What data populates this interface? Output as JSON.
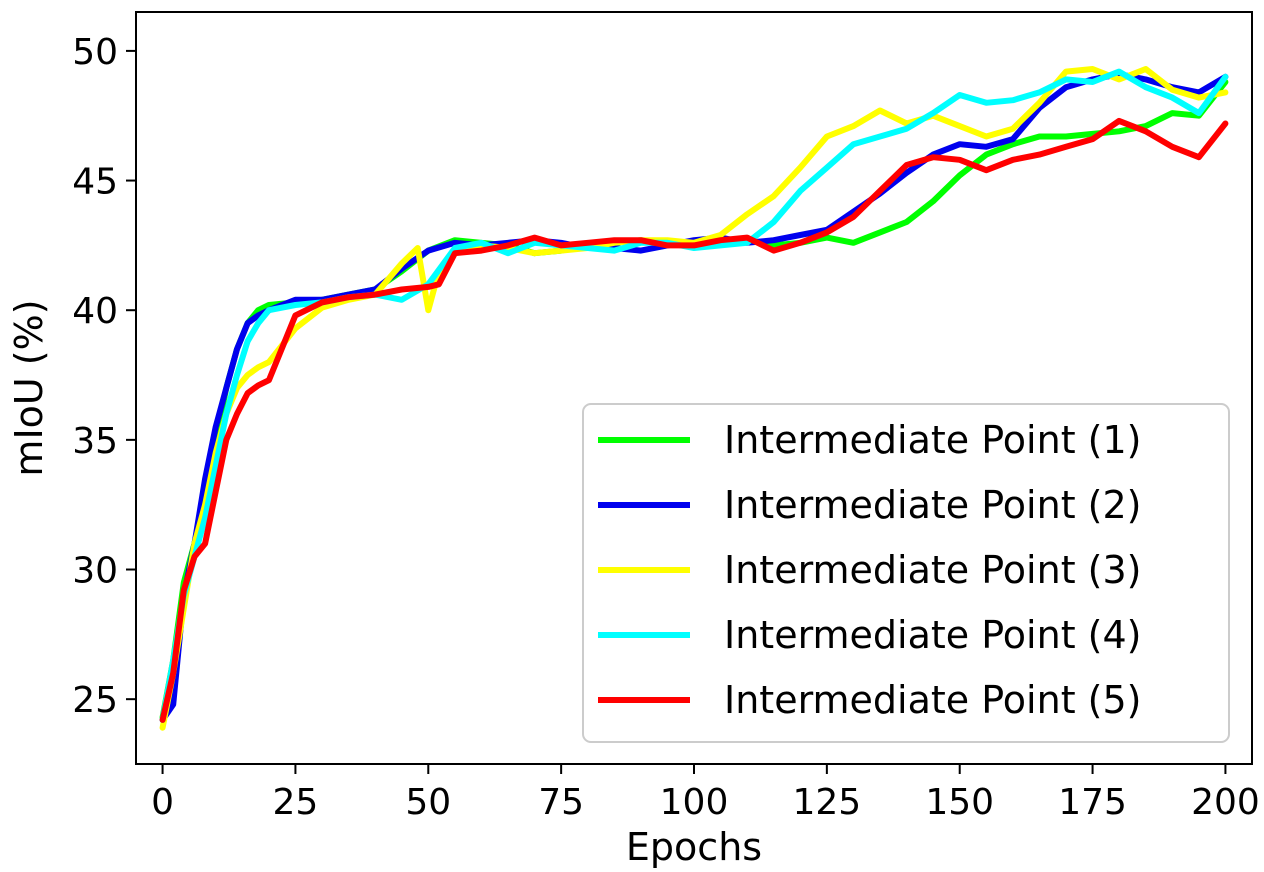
{
  "chart_data": {
    "type": "line",
    "title": "",
    "xlabel": "Epochs",
    "ylabel": "mIoU (%)",
    "xlim": [
      -5,
      205
    ],
    "ylim": [
      22.5,
      51.5
    ],
    "xticks": [
      0,
      25,
      50,
      75,
      100,
      125,
      150,
      175,
      200
    ],
    "xtick_labels": [
      "0",
      "25",
      "50",
      "75",
      "100",
      "125",
      "150",
      "175",
      "200"
    ],
    "yticks": [
      25,
      30,
      35,
      40,
      45,
      50
    ],
    "ytick_labels": [
      "25",
      "30",
      "35",
      "40",
      "45",
      "50"
    ],
    "grid": false,
    "legend_position": "lower-right",
    "series": [
      {
        "name": "Intermediate Point (1)",
        "color": "#00ff00",
        "x": [
          0,
          2,
          4,
          6,
          8,
          10,
          12,
          14,
          16,
          18,
          20,
          25,
          30,
          35,
          40,
          45,
          50,
          55,
          60,
          65,
          70,
          75,
          80,
          85,
          90,
          95,
          100,
          105,
          110,
          115,
          120,
          125,
          130,
          135,
          140,
          145,
          150,
          155,
          160,
          165,
          170,
          175,
          180,
          185,
          190,
          195,
          200
        ],
        "values": [
          24.3,
          26.5,
          29.5,
          31.0,
          32.8,
          35.0,
          37.0,
          38.5,
          39.5,
          40.0,
          40.2,
          40.3,
          40.4,
          40.6,
          40.8,
          41.5,
          42.3,
          42.7,
          42.6,
          42.5,
          42.2,
          42.3,
          42.5,
          42.6,
          42.7,
          42.6,
          42.6,
          42.7,
          42.7,
          42.5,
          42.6,
          42.8,
          42.6,
          43.0,
          43.4,
          44.2,
          45.2,
          46.0,
          46.4,
          46.7,
          46.7,
          46.8,
          46.9,
          47.1,
          47.6,
          47.5,
          48.8
        ]
      },
      {
        "name": "Intermediate Point (2)",
        "color": "#0000ee",
        "x": [
          0,
          2,
          4,
          6,
          8,
          10,
          12,
          14,
          16,
          18,
          20,
          25,
          30,
          35,
          40,
          45,
          50,
          55,
          60,
          65,
          70,
          75,
          80,
          85,
          90,
          95,
          100,
          105,
          110,
          115,
          120,
          125,
          130,
          135,
          140,
          145,
          150,
          155,
          160,
          165,
          170,
          175,
          180,
          185,
          190,
          195,
          200
        ],
        "values": [
          24.2,
          24.8,
          29.0,
          31.0,
          33.5,
          35.5,
          37.0,
          38.5,
          39.5,
          39.8,
          40.0,
          40.4,
          40.4,
          40.6,
          40.8,
          41.6,
          42.3,
          42.6,
          42.5,
          42.6,
          42.7,
          42.6,
          42.4,
          42.4,
          42.3,
          42.5,
          42.7,
          42.8,
          42.6,
          42.7,
          42.9,
          43.1,
          43.8,
          44.5,
          45.3,
          46.0,
          46.4,
          46.3,
          46.6,
          47.8,
          48.6,
          48.9,
          49.1,
          48.9,
          48.6,
          48.4,
          49.0
        ]
      },
      {
        "name": "Intermediate Point (3)",
        "color": "#ffff00",
        "x": [
          0,
          2,
          4,
          6,
          8,
          10,
          12,
          14,
          16,
          18,
          20,
          25,
          30,
          35,
          40,
          45,
          48,
          50,
          52,
          55,
          60,
          65,
          70,
          75,
          80,
          85,
          90,
          95,
          100,
          105,
          110,
          115,
          120,
          125,
          130,
          135,
          140,
          145,
          150,
          155,
          160,
          165,
          170,
          175,
          180,
          185,
          190,
          195,
          200
        ],
        "values": [
          23.9,
          26.0,
          28.5,
          31.0,
          32.5,
          34.5,
          36.0,
          37.0,
          37.5,
          37.8,
          38.0,
          39.3,
          40.1,
          40.4,
          40.6,
          41.8,
          42.4,
          40.0,
          41.5,
          42.3,
          42.5,
          42.4,
          42.2,
          42.3,
          42.4,
          42.6,
          42.7,
          42.7,
          42.6,
          42.9,
          43.7,
          44.4,
          45.5,
          46.7,
          47.1,
          47.7,
          47.2,
          47.5,
          47.1,
          46.7,
          47.0,
          48.0,
          49.2,
          49.3,
          48.9,
          49.3,
          48.5,
          48.2,
          48.4
        ]
      },
      {
        "name": "Intermediate Point (4)",
        "color": "#00ffff",
        "x": [
          0,
          2,
          4,
          6,
          8,
          10,
          12,
          14,
          16,
          18,
          20,
          25,
          30,
          35,
          40,
          45,
          50,
          55,
          60,
          65,
          70,
          75,
          80,
          85,
          90,
          95,
          100,
          105,
          110,
          115,
          120,
          125,
          130,
          135,
          140,
          145,
          150,
          155,
          160,
          165,
          170,
          175,
          180,
          185,
          190,
          195,
          200
        ],
        "values": [
          24.2,
          26.5,
          29.0,
          30.5,
          32.0,
          34.0,
          36.0,
          37.5,
          38.8,
          39.5,
          40.0,
          40.2,
          40.3,
          40.5,
          40.6,
          40.4,
          41.0,
          42.4,
          42.6,
          42.2,
          42.6,
          42.5,
          42.4,
          42.3,
          42.6,
          42.6,
          42.4,
          42.5,
          42.6,
          43.4,
          44.6,
          45.5,
          46.4,
          46.7,
          47.0,
          47.6,
          48.3,
          48.0,
          48.1,
          48.4,
          48.9,
          48.8,
          49.2,
          48.6,
          48.2,
          47.6,
          49.0
        ]
      },
      {
        "name": "Intermediate Point (5)",
        "color": "#ff0000",
        "x": [
          0,
          2,
          4,
          6,
          8,
          10,
          12,
          14,
          16,
          18,
          20,
          25,
          30,
          35,
          40,
          45,
          50,
          52,
          55,
          60,
          65,
          70,
          75,
          80,
          85,
          90,
          95,
          100,
          105,
          110,
          115,
          120,
          125,
          130,
          135,
          140,
          145,
          150,
          155,
          160,
          165,
          170,
          175,
          180,
          185,
          190,
          195,
          200
        ],
        "values": [
          24.2,
          26.0,
          29.2,
          30.5,
          31.0,
          33.0,
          35.0,
          36.0,
          36.8,
          37.1,
          37.3,
          39.8,
          40.3,
          40.5,
          40.6,
          40.8,
          40.9,
          41.0,
          42.2,
          42.3,
          42.5,
          42.8,
          42.5,
          42.6,
          42.7,
          42.7,
          42.5,
          42.5,
          42.7,
          42.8,
          42.3,
          42.6,
          43.0,
          43.6,
          44.6,
          45.6,
          45.9,
          45.8,
          45.4,
          45.8,
          46.0,
          46.3,
          46.6,
          47.3,
          46.9,
          46.3,
          45.9,
          47.2
        ]
      }
    ]
  }
}
